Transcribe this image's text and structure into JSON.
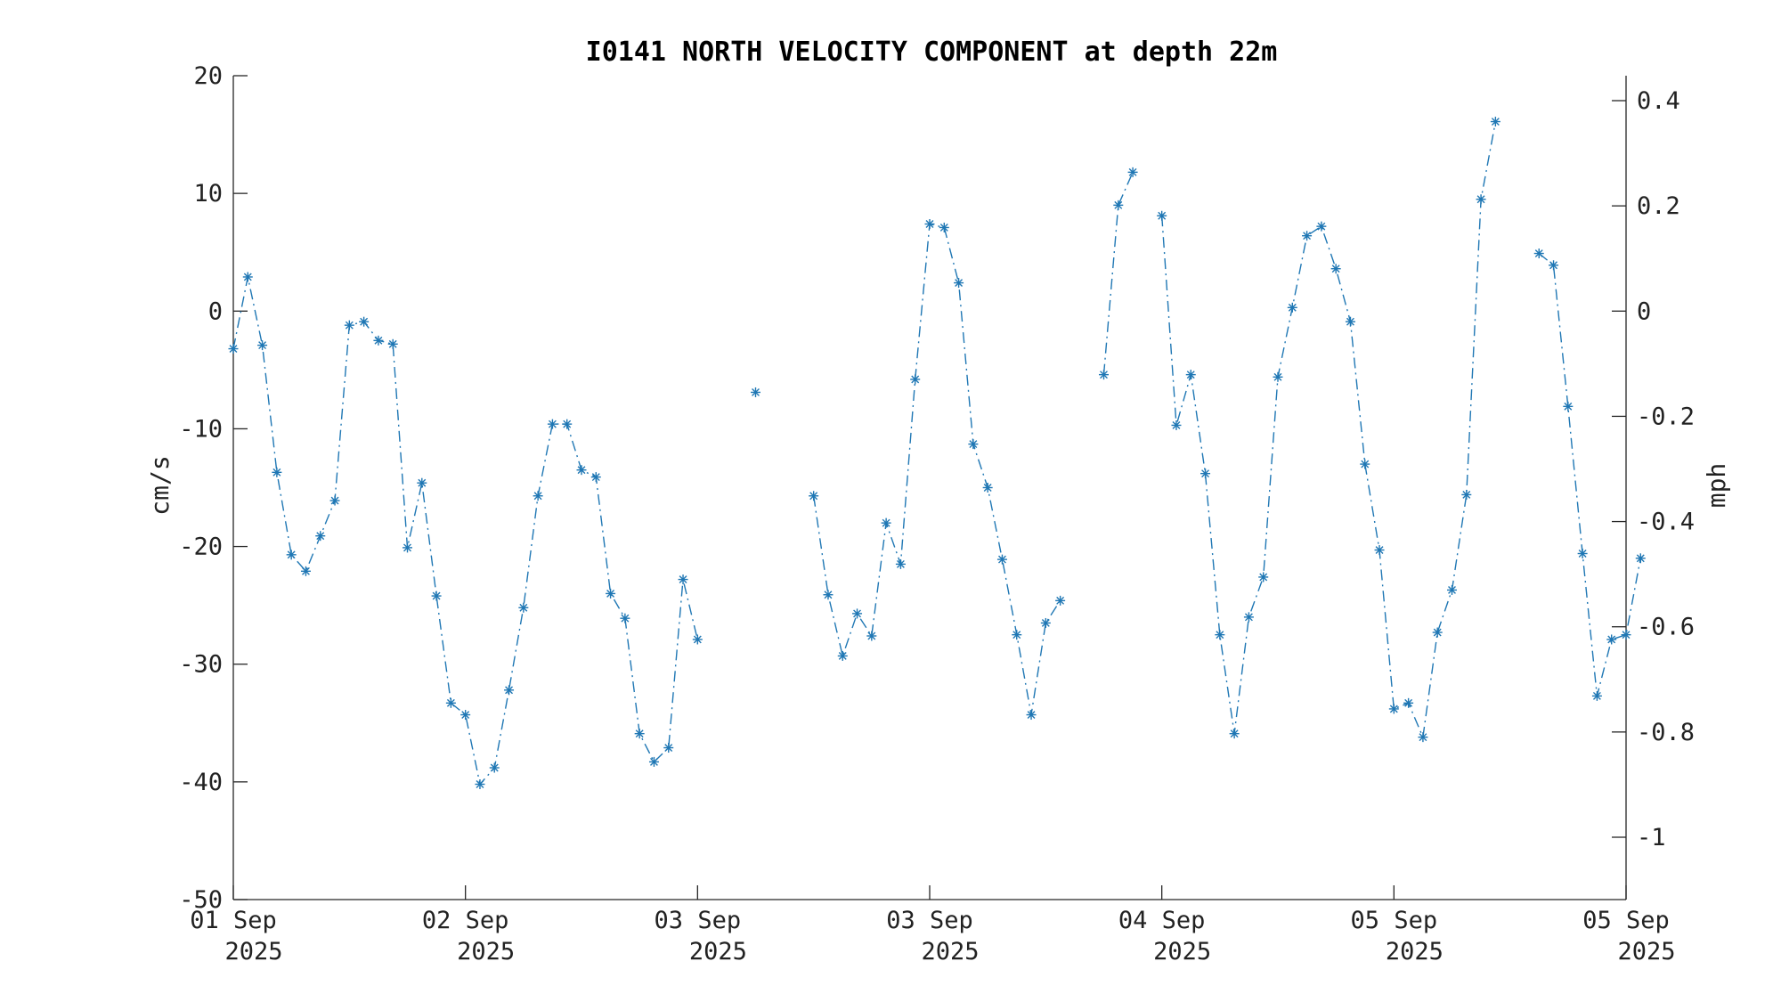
{
  "chart_data": {
    "type": "line",
    "title": "I0141 NORTH VELOCITY COMPONENT at depth 22m",
    "ylabel": "cm/s",
    "y2label": "mph",
    "ylim": [
      -50,
      20
    ],
    "y2lim": [
      -1.1185,
      0.4474
    ],
    "yticks": [
      20,
      10,
      0,
      -10,
      -20,
      -30,
      -40,
      -50
    ],
    "yticks_labels": [
      "20",
      "10",
      "0",
      "-10",
      "-20",
      "-30",
      "-40",
      "-50"
    ],
    "y2ticks": [
      0.4,
      0.2,
      0,
      -0.2,
      -0.4,
      -0.6,
      -0.8,
      -1
    ],
    "y2ticks_labels": [
      "0.4",
      "0.2",
      "0",
      "-0.2",
      "-0.4",
      "-0.6",
      "-0.8",
      "-1"
    ],
    "xlim": [
      0,
      96
    ],
    "xticks": [
      0,
      16,
      32,
      48,
      64,
      80,
      96
    ],
    "xticks_labels": [
      [
        "01 Sep",
        "2025"
      ],
      [
        "02 Sep",
        "2025"
      ],
      [
        "03 Sep",
        "2025"
      ],
      [
        "03 Sep",
        "2025"
      ],
      [
        "04 Sep",
        "2025"
      ],
      [
        "05 Sep",
        "2025"
      ],
      [
        "05 Sep",
        "2025"
      ]
    ],
    "grid": false,
    "line_style": "dash-dot",
    "marker": "asterisk",
    "color": "#1f77b4",
    "values": [
      -3.2,
      2.9,
      -2.9,
      -13.7,
      -20.7,
      -22.1,
      -19.1,
      -16.1,
      -1.2,
      -0.9,
      -2.5,
      -2.8,
      -20.1,
      -14.6,
      -24.2,
      -33.3,
      -34.3,
      -40.2,
      -38.8,
      -32.2,
      -25.2,
      -15.7,
      -9.6,
      -9.6,
      -13.5,
      -14.1,
      -24.0,
      -26.1,
      -35.9,
      -38.3,
      -37.1,
      -22.8,
      -27.9,
      null,
      null,
      null,
      -6.9,
      null,
      null,
      null,
      -15.7,
      -24.1,
      -29.3,
      -25.7,
      -27.6,
      -18.0,
      -21.5,
      -5.8,
      7.4,
      7.1,
      2.4,
      -11.3,
      -15.0,
      -21.1,
      -27.5,
      -34.3,
      -26.5,
      -24.6,
      null,
      null,
      -5.4,
      9.0,
      11.8,
      null,
      8.1,
      -9.7,
      -5.4,
      -13.8,
      -27.5,
      -35.9,
      -26.0,
      -22.6,
      -5.6,
      0.3,
      6.4,
      7.2,
      3.6,
      -0.9,
      -13.0,
      -20.3,
      -33.8,
      -33.3,
      -36.2,
      -27.3,
      -23.7,
      -15.6,
      9.5,
      16.1,
      null,
      null,
      4.9,
      3.9,
      -8.1,
      -20.6,
      -32.7,
      -27.9,
      -27.5,
      -21.0
    ]
  }
}
